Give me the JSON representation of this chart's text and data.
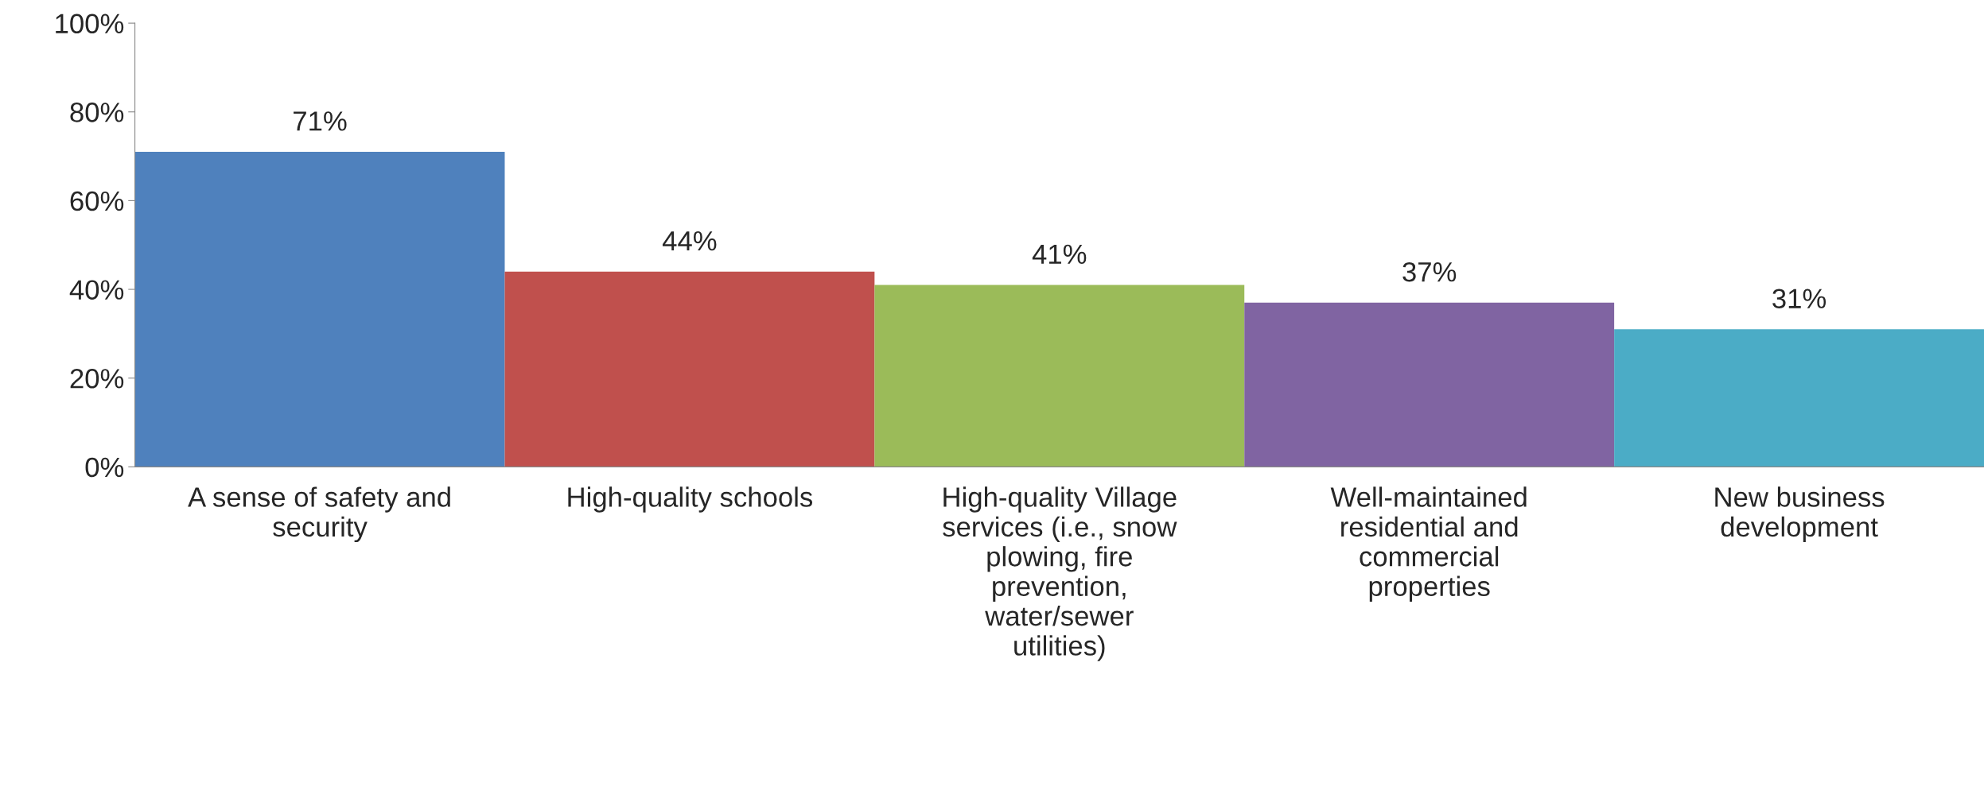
{
  "chart_data": {
    "type": "bar",
    "categories": [
      "A sense of safety and\nsecurity",
      "High-quality schools",
      "High-quality Village\nservices (i.e., snow\nplowing, fire\nprevention,\nwater/sewer\nutilities)",
      "Well-maintained\nresidential and\ncommercial\nproperties",
      "New business\ndevelopment"
    ],
    "values": [
      71,
      44,
      41,
      37,
      31
    ],
    "colors": [
      "#4f81bd",
      "#c0504d",
      "#9bbb59",
      "#8064a2",
      "#4bacc6"
    ],
    "value_labels": [
      "71%",
      "44%",
      "41%",
      "37%",
      "31%"
    ],
    "ylim": [
      0,
      100
    ],
    "yticks": [
      {
        "value": 0,
        "label": "0%"
      },
      {
        "value": 20,
        "label": "20%"
      },
      {
        "value": 40,
        "label": "40%"
      },
      {
        "value": 60,
        "label": "60%"
      },
      {
        "value": 80,
        "label": "80%"
      },
      {
        "value": 100,
        "label": "100%"
      }
    ],
    "grid": false,
    "legend": false
  }
}
